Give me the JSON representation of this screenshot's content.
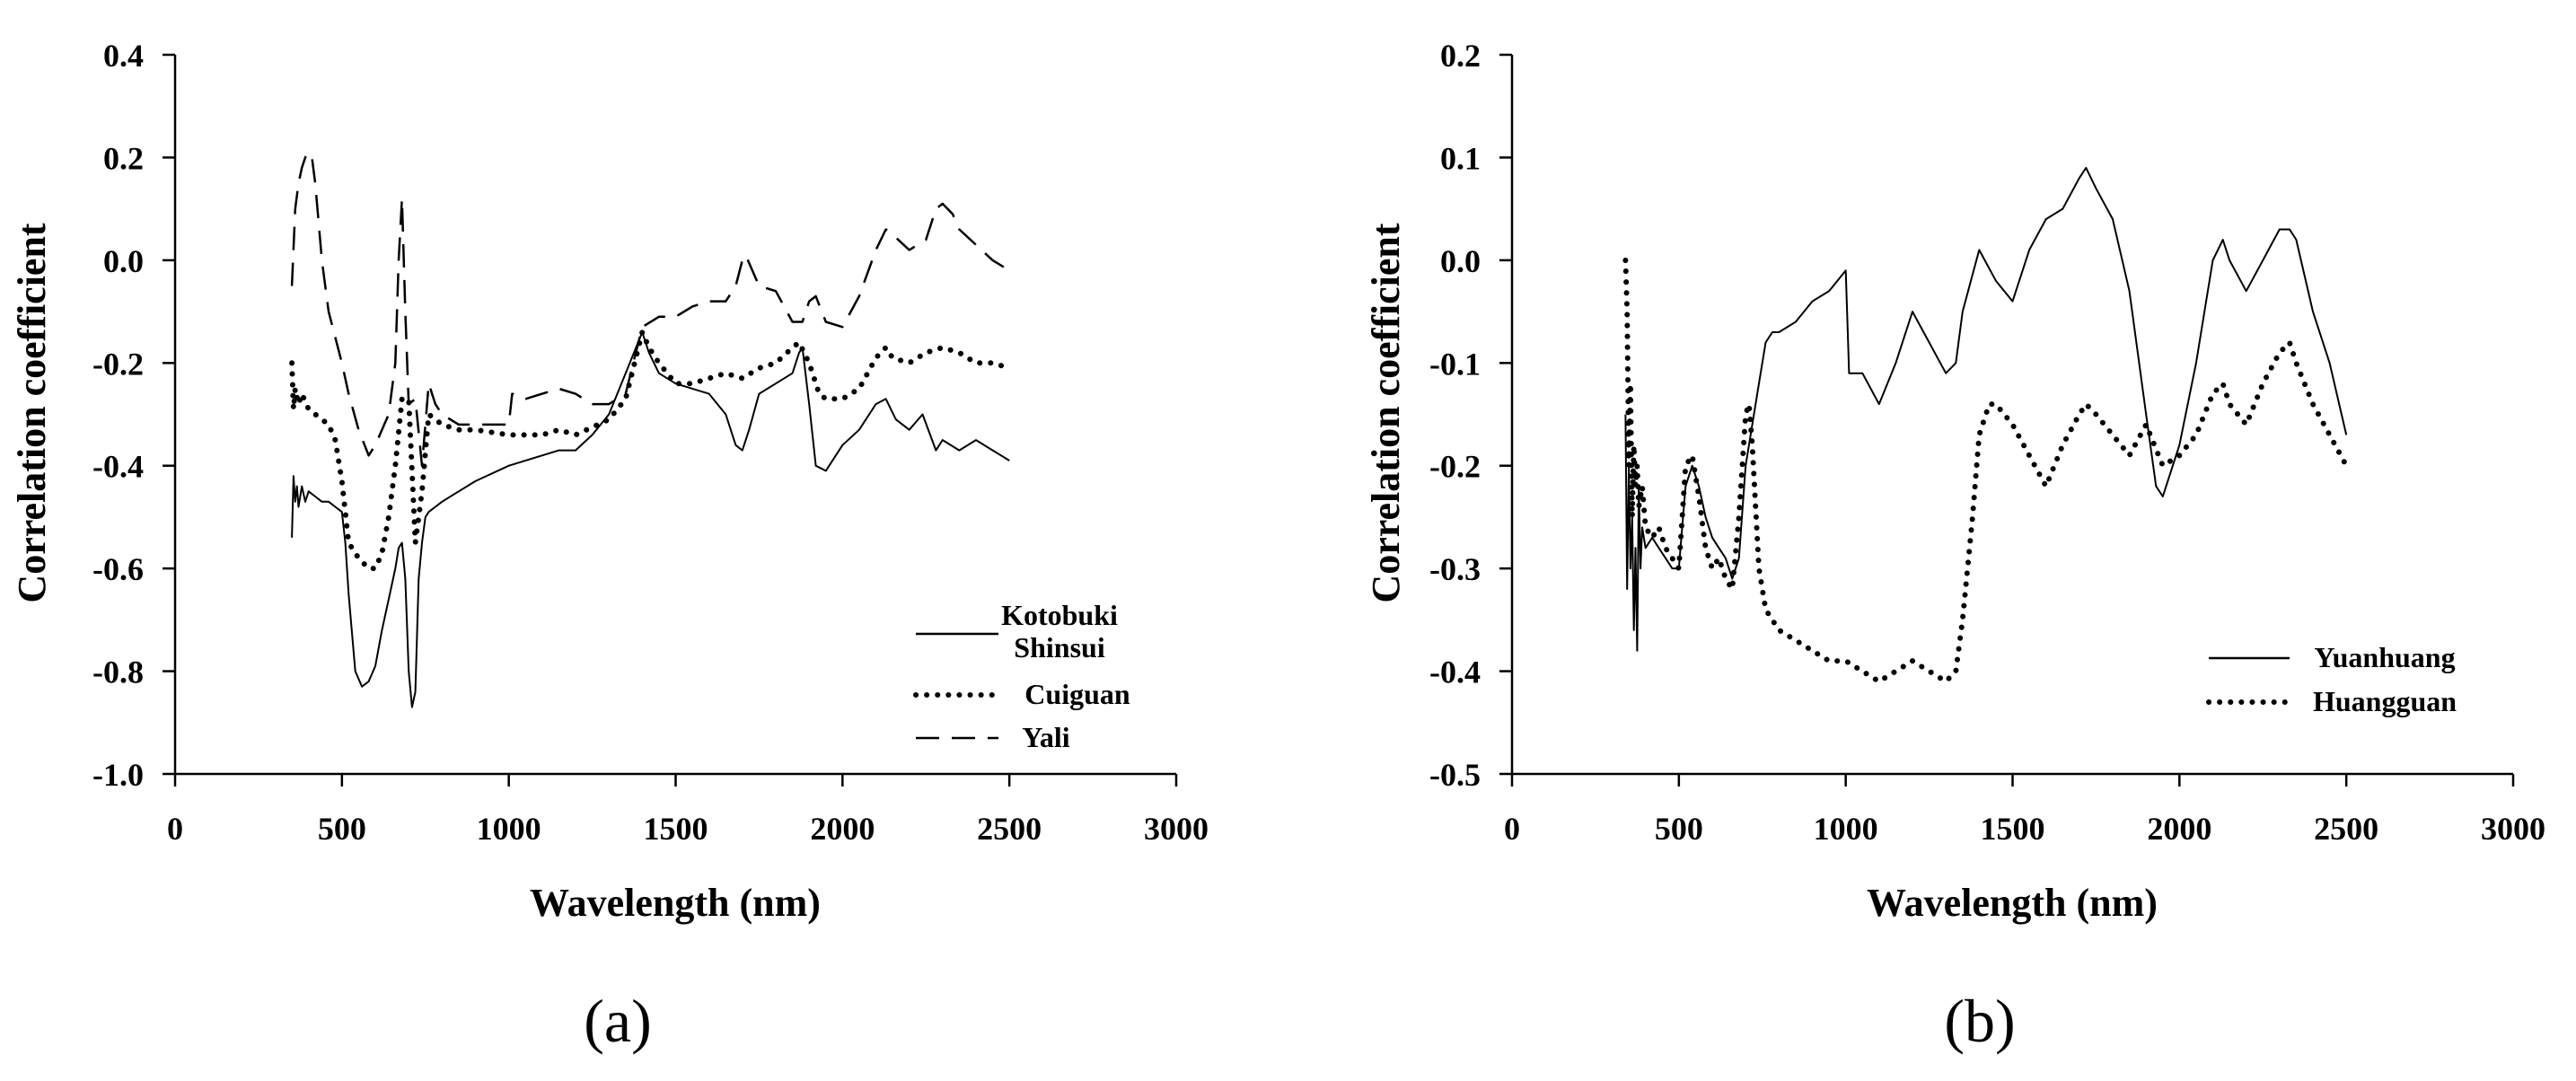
{
  "chart_data": [
    {
      "type": "line",
      "panel_label": "(a)",
      "xlabel": "Wavelength (nm)",
      "ylabel": "Correlation coefficient",
      "xlim": [
        0,
        3000
      ],
      "ylim": [
        -1.0,
        0.4
      ],
      "xticks": [
        "0",
        "500",
        "1000",
        "1500",
        "2000",
        "2500",
        "3000"
      ],
      "yticks": [
        "-1.0",
        "-0.8",
        "-0.6",
        "-0.4",
        "-0.2",
        "0.0",
        "0.2",
        "0.4"
      ],
      "legend_position": "bottom-right",
      "series": [
        {
          "name": "Kotobuki Shinsui",
          "legend_lines": [
            "Kotobuki",
            "Shinsui"
          ],
          "style": "solid",
          "x": [
            350,
            355,
            360,
            365,
            370,
            380,
            390,
            400,
            420,
            440,
            460,
            480,
            500,
            510,
            520,
            540,
            560,
            580,
            600,
            620,
            640,
            660,
            670,
            680,
            690,
            700,
            710,
            720,
            730,
            740,
            750,
            760,
            780,
            800,
            850,
            900,
            1000,
            1100,
            1150,
            1200,
            1250,
            1300,
            1350,
            1400,
            1420,
            1450,
            1500,
            1550,
            1600,
            1650,
            1680,
            1700,
            1720,
            1750,
            1800,
            1850,
            1870,
            1880,
            1900,
            1920,
            1950,
            2000,
            2050,
            2100,
            2130,
            2160,
            2200,
            2240,
            2280,
            2300,
            2350,
            2400,
            2450,
            2500
          ],
          "values": [
            -0.54,
            -0.42,
            -0.47,
            -0.44,
            -0.48,
            -0.44,
            -0.47,
            -0.45,
            -0.46,
            -0.47,
            -0.47,
            -0.48,
            -0.49,
            -0.55,
            -0.65,
            -0.8,
            -0.83,
            -0.82,
            -0.79,
            -0.72,
            -0.66,
            -0.6,
            -0.56,
            -0.55,
            -0.62,
            -0.8,
            -0.87,
            -0.84,
            -0.62,
            -0.55,
            -0.5,
            -0.49,
            -0.48,
            -0.47,
            -0.45,
            -0.43,
            -0.4,
            -0.38,
            -0.37,
            -0.37,
            -0.34,
            -0.3,
            -0.22,
            -0.14,
            -0.18,
            -0.22,
            -0.24,
            -0.25,
            -0.26,
            -0.3,
            -0.36,
            -0.37,
            -0.33,
            -0.26,
            -0.24,
            -0.22,
            -0.18,
            -0.17,
            -0.28,
            -0.4,
            -0.41,
            -0.36,
            -0.33,
            -0.28,
            -0.27,
            -0.31,
            -0.33,
            -0.3,
            -0.37,
            -0.35,
            -0.37,
            -0.35,
            -0.37,
            -0.39
          ]
        },
        {
          "name": "Cuiguan",
          "style": "dotted",
          "x": [
            350,
            355,
            360,
            370,
            380,
            400,
            420,
            440,
            460,
            480,
            500,
            520,
            550,
            580,
            600,
            620,
            640,
            660,
            680,
            700,
            720,
            740,
            760,
            800,
            850,
            900,
            1000,
            1100,
            1150,
            1200,
            1300,
            1350,
            1400,
            1420,
            1450,
            1500,
            1550,
            1600,
            1650,
            1700,
            1750,
            1800,
            1850,
            1870,
            1900,
            1930,
            1950,
            2000,
            2050,
            2100,
            2130,
            2150,
            2200,
            2250,
            2300,
            2350,
            2400,
            2450,
            2500
          ],
          "values": [
            -0.2,
            -0.29,
            -0.25,
            -0.28,
            -0.26,
            -0.29,
            -0.3,
            -0.31,
            -0.32,
            -0.35,
            -0.43,
            -0.55,
            -0.58,
            -0.6,
            -0.6,
            -0.57,
            -0.5,
            -0.4,
            -0.27,
            -0.27,
            -0.55,
            -0.45,
            -0.3,
            -0.32,
            -0.33,
            -0.33,
            -0.34,
            -0.34,
            -0.33,
            -0.34,
            -0.31,
            -0.27,
            -0.14,
            -0.17,
            -0.2,
            -0.24,
            -0.24,
            -0.23,
            -0.22,
            -0.23,
            -0.21,
            -0.2,
            -0.17,
            -0.16,
            -0.2,
            -0.26,
            -0.27,
            -0.27,
            -0.25,
            -0.19,
            -0.17,
            -0.19,
            -0.2,
            -0.18,
            -0.17,
            -0.18,
            -0.2,
            -0.2,
            -0.21
          ]
        },
        {
          "name": "Yali",
          "style": "dashed",
          "x": [
            350,
            360,
            370,
            380,
            390,
            400,
            410,
            420,
            440,
            460,
            480,
            500,
            520,
            550,
            580,
            600,
            620,
            640,
            660,
            670,
            680,
            690,
            700,
            720,
            740,
            760,
            780,
            800,
            850,
            900,
            950,
            1000,
            1010,
            1050,
            1100,
            1150,
            1200,
            1250,
            1300,
            1350,
            1400,
            1450,
            1500,
            1550,
            1600,
            1650,
            1680,
            1700,
            1710,
            1750,
            1800,
            1850,
            1880,
            1900,
            1920,
            1950,
            2000,
            2050,
            2100,
            2130,
            2150,
            2200,
            2250,
            2280,
            2300,
            2330,
            2350,
            2400,
            2450,
            2500
          ],
          "values": [
            -0.05,
            0.1,
            0.15,
            0.18,
            0.2,
            0.21,
            0.2,
            0.15,
            0.0,
            -0.1,
            -0.15,
            -0.2,
            -0.26,
            -0.33,
            -0.38,
            -0.36,
            -0.33,
            -0.3,
            -0.2,
            0.0,
            0.12,
            -0.1,
            -0.28,
            -0.27,
            -0.4,
            -0.24,
            -0.28,
            -0.3,
            -0.32,
            -0.32,
            -0.32,
            -0.32,
            -0.26,
            -0.27,
            -0.26,
            -0.25,
            -0.26,
            -0.28,
            -0.28,
            -0.26,
            -0.13,
            -0.11,
            -0.11,
            -0.09,
            -0.08,
            -0.08,
            -0.05,
            0.0,
            0.01,
            -0.05,
            -0.06,
            -0.12,
            -0.12,
            -0.08,
            -0.07,
            -0.12,
            -0.13,
            -0.07,
            0.02,
            0.06,
            0.05,
            0.02,
            0.04,
            0.1,
            0.11,
            0.09,
            0.06,
            0.03,
            0.0,
            -0.02
          ]
        }
      ]
    },
    {
      "type": "line",
      "panel_label": "(b)",
      "xlabel": "Wavelength (nm)",
      "ylabel": "Correlation coefficient",
      "xlim": [
        0,
        3000
      ],
      "ylim": [
        -0.5,
        0.2
      ],
      "xticks": [
        "0",
        "500",
        "1000",
        "1500",
        "2000",
        "2500",
        "3000"
      ],
      "yticks": [
        "-0.5",
        "-0.4",
        "-0.3",
        "-0.2",
        "-0.1",
        "0.0",
        "0.1",
        "0.2"
      ],
      "legend_position": "bottom-right",
      "series": [
        {
          "name": "Yuanhuang",
          "style": "solid",
          "x": [
            340,
            345,
            350,
            355,
            360,
            365,
            370,
            375,
            380,
            385,
            390,
            400,
            420,
            440,
            460,
            480,
            500,
            520,
            540,
            560,
            580,
            600,
            620,
            640,
            660,
            680,
            700,
            720,
            740,
            760,
            780,
            800,
            850,
            900,
            950,
            1000,
            1010,
            1050,
            1100,
            1150,
            1200,
            1250,
            1300,
            1330,
            1350,
            1400,
            1450,
            1500,
            1550,
            1600,
            1650,
            1700,
            1720,
            1750,
            1800,
            1850,
            1900,
            1930,
            1950,
            2000,
            2050,
            2100,
            2130,
            2150,
            2200,
            2250,
            2300,
            2330,
            2350,
            2400,
            2450,
            2500
          ],
          "values": [
            -0.15,
            -0.32,
            -0.2,
            -0.3,
            -0.25,
            -0.36,
            -0.28,
            -0.38,
            -0.22,
            -0.3,
            -0.26,
            -0.28,
            -0.27,
            -0.28,
            -0.29,
            -0.3,
            -0.3,
            -0.22,
            -0.2,
            -0.22,
            -0.25,
            -0.27,
            -0.28,
            -0.29,
            -0.31,
            -0.29,
            -0.2,
            -0.16,
            -0.12,
            -0.08,
            -0.07,
            -0.07,
            -0.06,
            -0.04,
            -0.03,
            -0.01,
            -0.11,
            -0.11,
            -0.14,
            -0.1,
            -0.05,
            -0.08,
            -0.11,
            -0.1,
            -0.05,
            0.01,
            -0.02,
            -0.04,
            0.01,
            0.04,
            0.05,
            0.08,
            0.09,
            0.07,
            0.04,
            -0.03,
            -0.15,
            -0.22,
            -0.23,
            -0.18,
            -0.1,
            0.0,
            0.02,
            0.0,
            -0.03,
            0.0,
            0.03,
            0.03,
            0.02,
            -0.05,
            -0.1,
            -0.17
          ]
        },
        {
          "name": "Huangguan",
          "style": "dotted",
          "x": [
            340,
            345,
            350,
            355,
            360,
            365,
            370,
            375,
            380,
            390,
            400,
            420,
            440,
            460,
            480,
            500,
            520,
            540,
            560,
            580,
            600,
            620,
            640,
            660,
            680,
            700,
            710,
            720,
            740,
            760,
            780,
            800,
            850,
            900,
            950,
            1000,
            1050,
            1100,
            1150,
            1200,
            1250,
            1300,
            1330,
            1350,
            1380,
            1400,
            1430,
            1450,
            1500,
            1550,
            1600,
            1650,
            1700,
            1720,
            1750,
            1800,
            1850,
            1900,
            1950,
            2000,
            2050,
            2100,
            2130,
            2150,
            2200,
            2250,
            2300,
            2330,
            2350,
            2400,
            2450,
            2500
          ],
          "values": [
            0.0,
            -0.05,
            -0.2,
            -0.12,
            -0.25,
            -0.18,
            -0.22,
            -0.2,
            -0.24,
            -0.22,
            -0.26,
            -0.27,
            -0.26,
            -0.28,
            -0.29,
            -0.3,
            -0.2,
            -0.19,
            -0.23,
            -0.28,
            -0.3,
            -0.29,
            -0.31,
            -0.32,
            -0.25,
            -0.15,
            -0.14,
            -0.18,
            -0.3,
            -0.34,
            -0.35,
            -0.36,
            -0.37,
            -0.38,
            -0.39,
            -0.39,
            -0.4,
            -0.41,
            -0.4,
            -0.39,
            -0.4,
            -0.41,
            -0.4,
            -0.35,
            -0.25,
            -0.17,
            -0.14,
            -0.14,
            -0.16,
            -0.19,
            -0.22,
            -0.18,
            -0.15,
            -0.14,
            -0.15,
            -0.17,
            -0.19,
            -0.16,
            -0.2,
            -0.19,
            -0.17,
            -0.13,
            -0.12,
            -0.14,
            -0.16,
            -0.12,
            -0.09,
            -0.08,
            -0.1,
            -0.14,
            -0.17,
            -0.2
          ]
        }
      ]
    }
  ]
}
